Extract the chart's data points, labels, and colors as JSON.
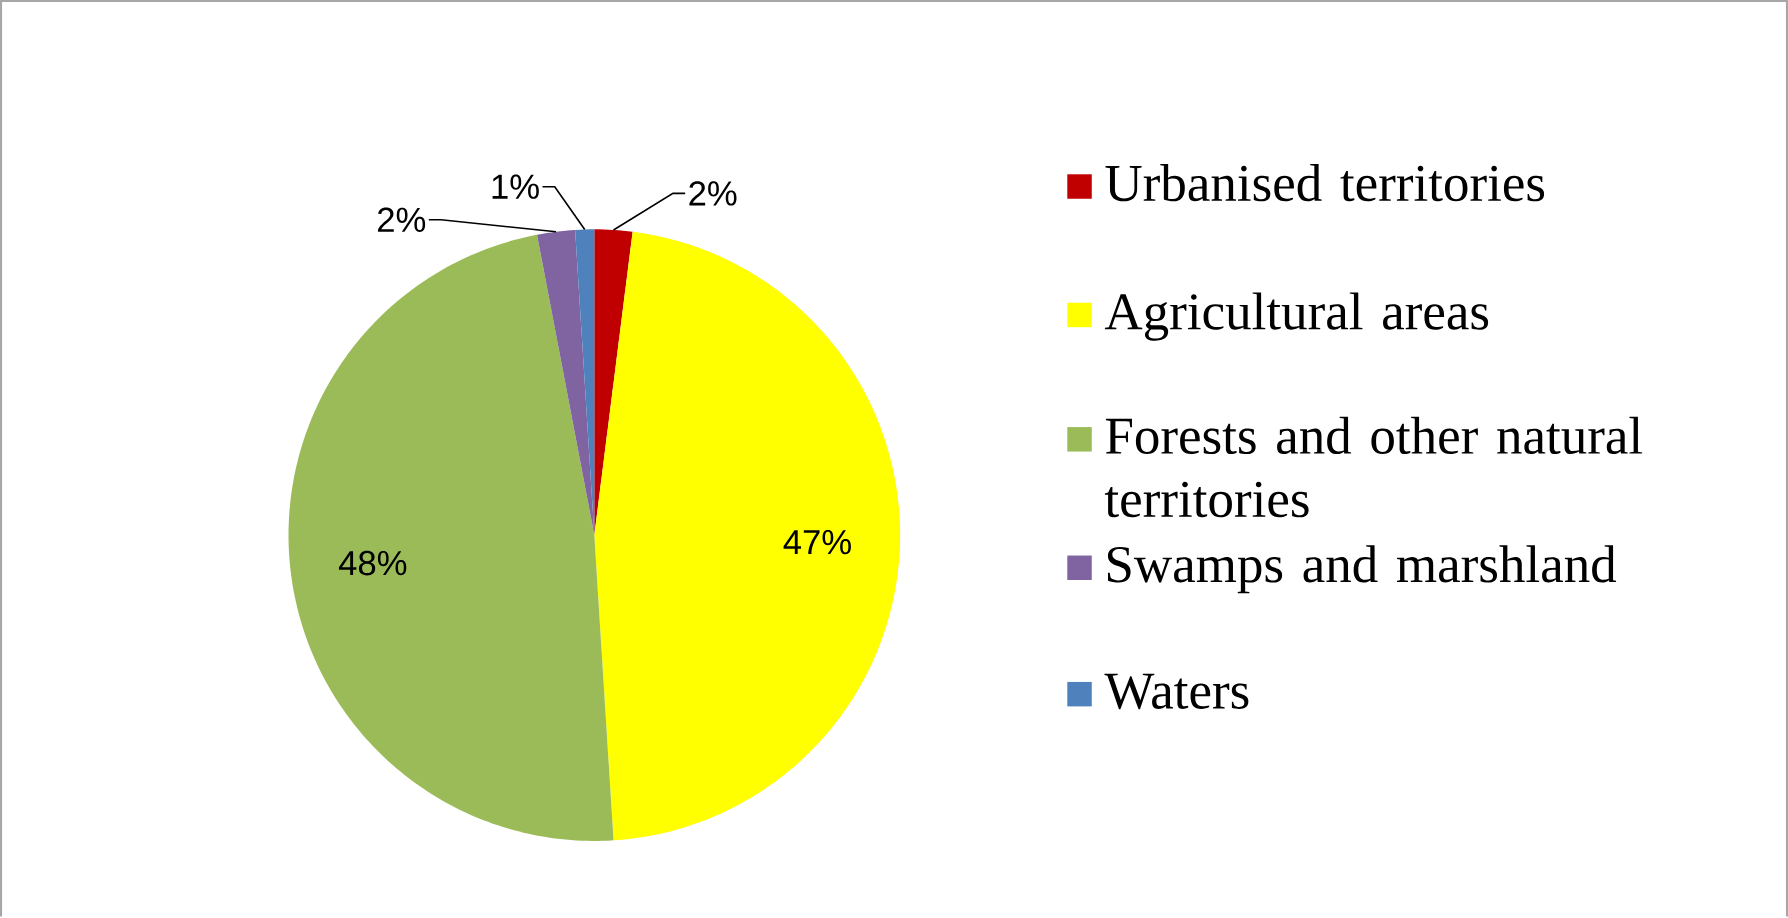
{
  "chart_data": {
    "type": "pie",
    "categories": [
      "Urbanised territories",
      "Agricultural areas",
      "Forests and other natural territories",
      "Swamps and marshland",
      "Waters"
    ],
    "values": [
      2,
      47,
      48,
      2,
      1
    ],
    "colors": [
      "#c00000",
      "#ffff00",
      "#9bbb59",
      "#8064a2",
      "#4f81bd"
    ],
    "value_labels": [
      "2%",
      "47%",
      "48%",
      "2%",
      "1%"
    ],
    "legend": "right"
  }
}
